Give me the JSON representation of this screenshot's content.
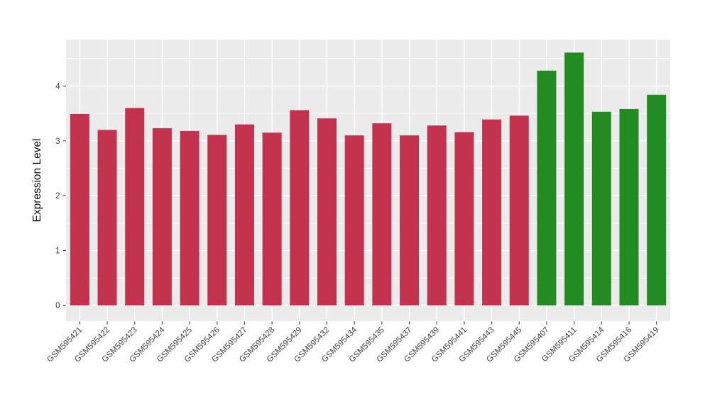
{
  "chart_data": {
    "type": "bar",
    "title": "",
    "xlabel": "",
    "ylabel": "Expression Level",
    "legend_position": "none",
    "grid": "on",
    "panel_bg": "#EBEBEB",
    "grid_color": "#FFFFFF",
    "axis_text_color": "#404040",
    "axis_title_color": "#111111",
    "tick_mark_color": "#333333",
    "ylim": [
      -0.28,
      4.85
    ],
    "y_ticks": [
      0,
      1,
      2,
      3,
      4
    ],
    "y_minor_ticks": [
      0.5,
      1.5,
      2.5,
      3.5,
      4.5
    ],
    "categories": [
      "GSM595421",
      "GSM595422",
      "GSM595423",
      "GSM595424",
      "GSM595425",
      "GSM595426",
      "GSM595427",
      "GSM595428",
      "GSM595429",
      "GSM595432",
      "GSM595434",
      "GSM595435",
      "GSM595437",
      "GSM595439",
      "GSM595441",
      "GSM595443",
      "GSM595445",
      "GSM595407",
      "GSM595411",
      "GSM595414",
      "GSM595416",
      "GSM595419"
    ],
    "values": [
      3.49,
      3.2,
      3.6,
      3.23,
      3.18,
      3.11,
      3.3,
      3.15,
      3.56,
      3.41,
      3.1,
      3.32,
      3.1,
      3.28,
      3.16,
      3.39,
      3.46,
      4.28,
      4.61,
      3.53,
      3.58,
      3.84
    ],
    "bar_groups": [
      "red",
      "red",
      "red",
      "red",
      "red",
      "red",
      "red",
      "red",
      "red",
      "red",
      "red",
      "red",
      "red",
      "red",
      "red",
      "red",
      "red",
      "green",
      "green",
      "green",
      "green",
      "green"
    ],
    "group_colors": {
      "red": "#C4334D",
      "green": "#228B22"
    }
  }
}
